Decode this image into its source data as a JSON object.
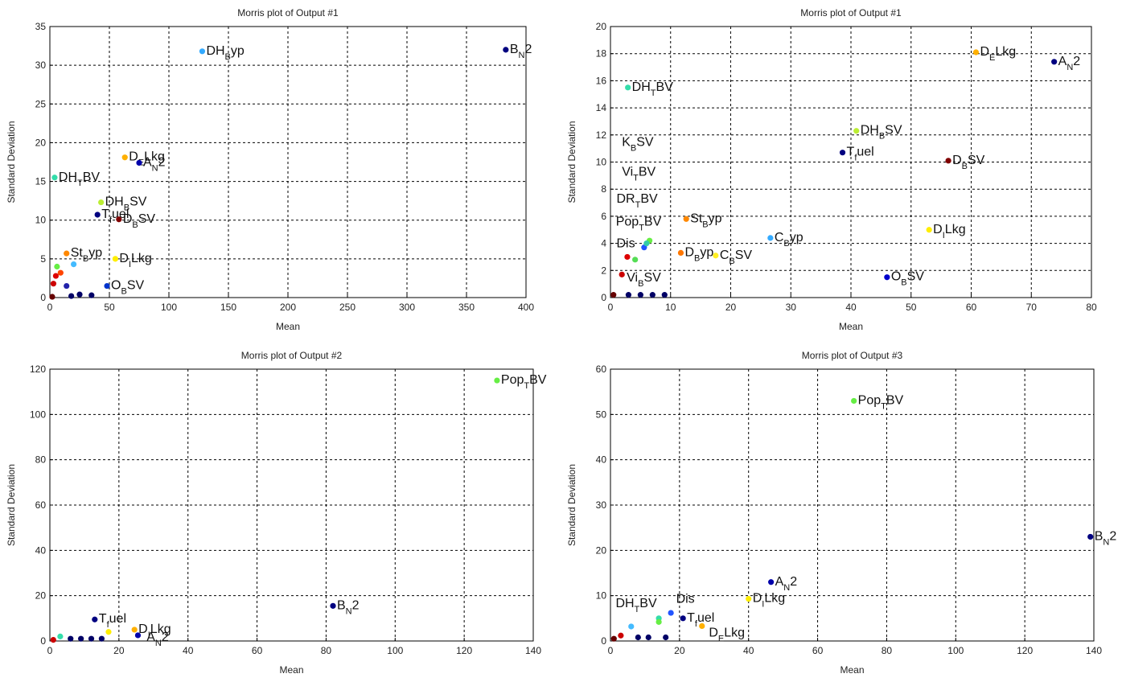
{
  "chart_data": [
    {
      "type": "scatter",
      "title": "Morris plot of Output #1",
      "xlabel": "Mean",
      "ylabel": "Standard Deviation",
      "xlim": [
        0,
        400
      ],
      "ylim": [
        0,
        35
      ],
      "xticks": [
        0,
        50,
        100,
        150,
        200,
        250,
        300,
        350,
        400
      ],
      "yticks": [
        0,
        5,
        10,
        15,
        20,
        25,
        30,
        35
      ],
      "grid": true,
      "points": [
        {
          "label": "DH",
          "sub": "B",
          "suffix": "yp",
          "x": 128,
          "y": 31.8,
          "color": "#33aaff"
        },
        {
          "label": "B",
          "sub": "N",
          "suffix": "2",
          "x": 383,
          "y": 32.0,
          "color": "#00007f"
        },
        {
          "label": "D",
          "sub": "E",
          "suffix": "Lkg",
          "x": 63,
          "y": 18.1,
          "color": "#ffb000"
        },
        {
          "label": "A",
          "sub": "N",
          "suffix": "2",
          "x": 75,
          "y": 17.4,
          "color": "#0000aa"
        },
        {
          "label": "DH",
          "sub": "T",
          "suffix": "BV",
          "x": 4,
          "y": 15.5,
          "color": "#33ddaa"
        },
        {
          "label": "DH",
          "sub": "B",
          "suffix": "SV",
          "x": 43,
          "y": 12.3,
          "color": "#bbee33"
        },
        {
          "label": "T",
          "sub": "f",
          "suffix": "uel",
          "x": 40,
          "y": 10.7,
          "color": "#000080"
        },
        {
          "label": "D",
          "sub": "B",
          "suffix": "SV",
          "x": 58,
          "y": 10.1,
          "color": "#800000"
        },
        {
          "label": "St",
          "sub": "B",
          "suffix": "yp",
          "x": 14,
          "y": 5.7,
          "color": "#ff8800"
        },
        {
          "label": "D",
          "sub": "I",
          "suffix": "Lkg",
          "x": 55,
          "y": 5.0,
          "color": "#ffee00"
        },
        {
          "label": "O",
          "sub": "B",
          "suffix": "SV",
          "x": 48,
          "y": 1.5,
          "color": "#0033cc"
        },
        {
          "label": "",
          "sub": "",
          "suffix": "",
          "x": 6,
          "y": 4.0,
          "color": "#66ee44"
        },
        {
          "label": "",
          "sub": "",
          "suffix": "",
          "x": 9,
          "y": 3.2,
          "color": "#ff4400"
        },
        {
          "label": "",
          "sub": "",
          "suffix": "",
          "x": 5,
          "y": 2.8,
          "color": "#dd0000"
        },
        {
          "label": "",
          "sub": "",
          "suffix": "",
          "x": 3,
          "y": 1.8,
          "color": "#cc0000"
        },
        {
          "label": "",
          "sub": "",
          "suffix": "",
          "x": 20,
          "y": 4.3,
          "color": "#44bbff"
        },
        {
          "label": "",
          "sub": "",
          "suffix": "",
          "x": 14,
          "y": 1.5,
          "color": "#2222aa"
        },
        {
          "label": "",
          "sub": "",
          "suffix": "",
          "x": 25,
          "y": 0.4,
          "color": "#000066"
        },
        {
          "label": "",
          "sub": "",
          "suffix": "",
          "x": 35,
          "y": 0.3,
          "color": "#000066"
        },
        {
          "label": "",
          "sub": "",
          "suffix": "",
          "x": 18,
          "y": 0.2,
          "color": "#000066"
        },
        {
          "label": "",
          "sub": "",
          "suffix": "",
          "x": 2,
          "y": 0.1,
          "color": "#660000"
        }
      ]
    },
    {
      "type": "scatter",
      "title": "Morris plot of Output #1",
      "xlabel": "Mean",
      "ylabel": "Standard Deviation",
      "xlim": [
        0,
        80
      ],
      "ylim": [
        0,
        20
      ],
      "xticks": [
        0,
        10,
        20,
        30,
        40,
        50,
        60,
        70,
        80
      ],
      "yticks": [
        0,
        2,
        4,
        6,
        8,
        10,
        12,
        14,
        16,
        18,
        20
      ],
      "grid": true,
      "points": [
        {
          "label": "D",
          "sub": "E",
          "suffix": "Lkg",
          "x": 60.8,
          "y": 18.1,
          "color": "#ffb000"
        },
        {
          "label": "A",
          "sub": "N",
          "suffix": "2",
          "x": 73.8,
          "y": 17.4,
          "color": "#000080"
        },
        {
          "label": "DH",
          "sub": "T",
          "suffix": "BV",
          "x": 2.9,
          "y": 15.5,
          "color": "#33ddaa"
        },
        {
          "label": "DH",
          "sub": "B",
          "suffix": "SV",
          "x": 40.9,
          "y": 12.3,
          "color": "#bbee33"
        },
        {
          "label": "T",
          "sub": "f",
          "suffix": "uel",
          "x": 38.6,
          "y": 10.7,
          "color": "#000080"
        },
        {
          "label": "D",
          "sub": "B",
          "suffix": "SV",
          "x": 56.2,
          "y": 10.1,
          "color": "#800000"
        },
        {
          "label": "St",
          "sub": "B",
          "suffix": "yp",
          "x": 12.6,
          "y": 5.8,
          "color": "#ff8800"
        },
        {
          "label": "D",
          "sub": "I",
          "suffix": "Lkg",
          "x": 53.0,
          "y": 5.0,
          "color": "#ffee00"
        },
        {
          "label": "C",
          "sub": "B",
          "suffix": "yp",
          "x": 26.6,
          "y": 4.4,
          "color": "#33aaff"
        },
        {
          "label": "D",
          "sub": "B",
          "suffix": "yp",
          "x": 11.7,
          "y": 3.3,
          "color": "#ff7700"
        },
        {
          "label": "C",
          "sub": "B",
          "suffix": "SV",
          "x": 17.5,
          "y": 3.1,
          "color": "#ffee22"
        },
        {
          "label": "O",
          "sub": "B",
          "suffix": "SV",
          "x": 46.0,
          "y": 1.5,
          "color": "#0000cc"
        },
        {
          "label": "K",
          "sub": "B",
          "suffix": "SV",
          "x": 0,
          "y": 0,
          "color": "#000080",
          "labelOnly": true,
          "lx": 1.9,
          "ly": 11.2
        },
        {
          "label": "Vi",
          "sub": "T",
          "suffix": "BV",
          "x": 0,
          "y": 0,
          "color": "#000080",
          "labelOnly": true,
          "lx": 1.9,
          "ly": 9.0
        },
        {
          "label": "DR",
          "sub": "T",
          "suffix": "BV",
          "x": 0,
          "y": 0,
          "color": "#000080",
          "labelOnly": true,
          "lx": 1.0,
          "ly": 7.0
        },
        {
          "label": "Pop",
          "sub": "T",
          "suffix": "BV",
          "x": 6.5,
          "y": 4.2,
          "color": "#66ee44",
          "lx": 0.9,
          "ly": 5.3
        },
        {
          "label": "Dis",
          "sub": "",
          "suffix": "",
          "x": 2.8,
          "y": 3.0,
          "color": "#dd0000",
          "lx": 1.0,
          "ly": 3.7
        },
        {
          "label": "Vi",
          "sub": "B",
          "suffix": "SV",
          "x": 1.9,
          "y": 1.7,
          "color": "#cc0000",
          "lx": 2.7,
          "ly": 1.2
        },
        {
          "label": "",
          "sub": "",
          "suffix": "",
          "x": 5.6,
          "y": 3.7,
          "color": "#2255ff"
        },
        {
          "label": "",
          "sub": "",
          "suffix": "",
          "x": 4.1,
          "y": 2.8,
          "color": "#55dd55"
        },
        {
          "label": "",
          "sub": "",
          "suffix": "",
          "x": 6.0,
          "y": 4.0,
          "color": "#33ccaa"
        },
        {
          "label": "",
          "sub": "",
          "suffix": "",
          "x": 0.5,
          "y": 0.2,
          "color": "#660000"
        },
        {
          "label": "",
          "sub": "",
          "suffix": "",
          "x": 3.0,
          "y": 0.2,
          "color": "#000066"
        },
        {
          "label": "",
          "sub": "",
          "suffix": "",
          "x": 5.0,
          "y": 0.2,
          "color": "#000066"
        },
        {
          "label": "",
          "sub": "",
          "suffix": "",
          "x": 7.0,
          "y": 0.2,
          "color": "#000066"
        },
        {
          "label": "",
          "sub": "",
          "suffix": "",
          "x": 9.0,
          "y": 0.2,
          "color": "#000066"
        }
      ]
    },
    {
      "type": "scatter",
      "title": "Morris plot of Output #2",
      "xlabel": "Mean",
      "ylabel": "Standard Deviation",
      "xlim": [
        0,
        140
      ],
      "ylim": [
        0,
        120
      ],
      "xticks": [
        0,
        20,
        40,
        60,
        80,
        100,
        120,
        140
      ],
      "yticks": [
        0,
        20,
        40,
        60,
        80,
        100,
        120
      ],
      "grid": true,
      "points": [
        {
          "label": "Pop",
          "sub": "T",
          "suffix": "BV",
          "x": 129.5,
          "y": 115,
          "color": "#66ee44"
        },
        {
          "label": "B",
          "sub": "N",
          "suffix": "2",
          "x": 82,
          "y": 15.5,
          "color": "#000080"
        },
        {
          "label": "T",
          "sub": "f",
          "suffix": "uel",
          "x": 13,
          "y": 9.5,
          "color": "#000080"
        },
        {
          "label": "D",
          "sub": "I",
          "suffix": "Lkg",
          "x": 24.5,
          "y": 5.0,
          "color": "#ffb000"
        },
        {
          "label": "A",
          "sub": "N",
          "suffix": "2",
          "x": 25.5,
          "y": 2.5,
          "color": "#0000aa",
          "lx": 28.0,
          "ly": 0.0
        },
        {
          "label": "",
          "sub": "",
          "suffix": "",
          "x": 17,
          "y": 4.0,
          "color": "#ffee00"
        },
        {
          "label": "",
          "sub": "",
          "suffix": "",
          "x": 3,
          "y": 2.0,
          "color": "#33ddaa"
        },
        {
          "label": "",
          "sub": "",
          "suffix": "",
          "x": 1,
          "y": 0.5,
          "color": "#cc0000"
        },
        {
          "label": "",
          "sub": "",
          "suffix": "",
          "x": 6,
          "y": 1.0,
          "color": "#000066"
        },
        {
          "label": "",
          "sub": "",
          "suffix": "",
          "x": 9,
          "y": 1.0,
          "color": "#000066"
        },
        {
          "label": "",
          "sub": "",
          "suffix": "",
          "x": 12,
          "y": 1.0,
          "color": "#000066"
        },
        {
          "label": "",
          "sub": "",
          "suffix": "",
          "x": 15,
          "y": 1.0,
          "color": "#000066"
        }
      ]
    },
    {
      "type": "scatter",
      "title": "Morris plot of Output #3",
      "xlabel": "Mean",
      "ylabel": "Standard Deviation",
      "xlim": [
        0,
        140
      ],
      "ylim": [
        0,
        60
      ],
      "xticks": [
        0,
        20,
        40,
        60,
        80,
        100,
        120,
        140
      ],
      "yticks": [
        0,
        10,
        20,
        30,
        40,
        50,
        60
      ],
      "grid": true,
      "points": [
        {
          "label": "Pop",
          "sub": "T",
          "suffix": "BV",
          "x": 70.5,
          "y": 53.0,
          "color": "#66ee44"
        },
        {
          "label": "B",
          "sub": "N",
          "suffix": "2",
          "x": 139,
          "y": 23.0,
          "color": "#000080"
        },
        {
          "label": "A",
          "sub": "N",
          "suffix": "2",
          "x": 46.5,
          "y": 13.0,
          "color": "#0000aa"
        },
        {
          "label": "D",
          "sub": "I",
          "suffix": "Lkg",
          "x": 40,
          "y": 9.3,
          "color": "#ffee00"
        },
        {
          "label": "Dis",
          "sub": "",
          "suffix": "",
          "x": 17.5,
          "y": 6.2,
          "color": "#2255ff",
          "lx": 19.0,
          "ly": 8.4
        },
        {
          "label": "T",
          "sub": "f",
          "suffix": "uel",
          "x": 21,
          "y": 5.0,
          "color": "#000080"
        },
        {
          "label": "D",
          "sub": "E",
          "suffix": "Lkg",
          "x": 26.5,
          "y": 3.3,
          "color": "#ffb000",
          "lx": 28.5,
          "ly": 1.0
        },
        {
          "label": "DH",
          "sub": "T",
          "suffix": "BV",
          "x": 14,
          "y": 5.0,
          "color": "#33ddaa",
          "lx": 1.5,
          "ly": 7.5
        },
        {
          "label": "",
          "sub": "",
          "suffix": "",
          "x": 14,
          "y": 4.2,
          "color": "#66ee44"
        },
        {
          "label": "",
          "sub": "",
          "suffix": "",
          "x": 6,
          "y": 3.2,
          "color": "#44bbff"
        },
        {
          "label": "",
          "sub": "",
          "suffix": "",
          "x": 3,
          "y": 1.2,
          "color": "#cc0000"
        },
        {
          "label": "",
          "sub": "",
          "suffix": "",
          "x": 1,
          "y": 0.5,
          "color": "#660000"
        },
        {
          "label": "",
          "sub": "",
          "suffix": "",
          "x": 8,
          "y": 0.8,
          "color": "#000066"
        },
        {
          "label": "",
          "sub": "",
          "suffix": "",
          "x": 11,
          "y": 0.8,
          "color": "#000066"
        },
        {
          "label": "",
          "sub": "",
          "suffix": "",
          "x": 16,
          "y": 0.8,
          "color": "#000066"
        }
      ]
    }
  ]
}
